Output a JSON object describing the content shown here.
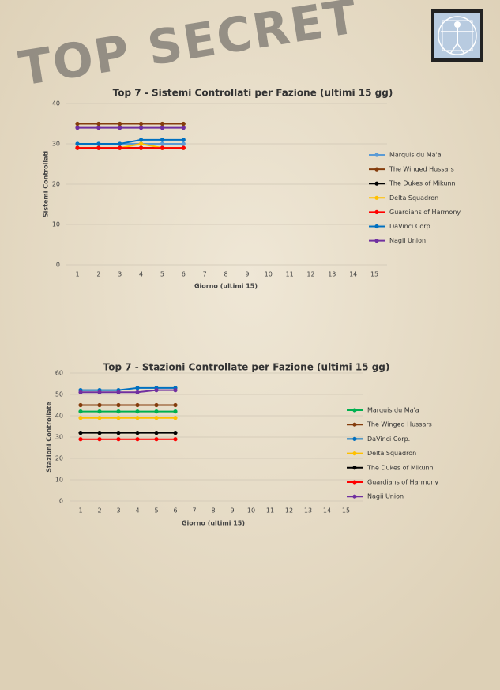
{
  "stamp": "TOP SECRET",
  "chart_data": [
    {
      "type": "line",
      "title": "Top 7 - Sistemi Controllati per Fazione (ultimi 15 gg)",
      "xlabel": "Giorno (ultimi 15)",
      "ylabel": "Sistemi Controllati",
      "categories": [
        1,
        2,
        3,
        4,
        5,
        6,
        7,
        8,
        9,
        10,
        11,
        12,
        13,
        14,
        15
      ],
      "ylim": [
        0,
        40
      ],
      "yticks": [
        0,
        10,
        20,
        30,
        40
      ],
      "grid": true,
      "legend": "right",
      "series": [
        {
          "name": "Marquis du Ma'a",
          "color": "#5b9bd5",
          "values": [
            30,
            30,
            30,
            30,
            30,
            30,
            null,
            null,
            null,
            null,
            null,
            null,
            null,
            null,
            null
          ]
        },
        {
          "name": "The Winged Hussars",
          "color": "#843c0c",
          "values": [
            35,
            35,
            35,
            35,
            35,
            35,
            null,
            null,
            null,
            null,
            null,
            null,
            null,
            null,
            null
          ]
        },
        {
          "name": "The Dukes of Mikunn",
          "color": "#000000",
          "values": [
            29,
            29,
            29,
            29,
            29,
            29,
            null,
            null,
            null,
            null,
            null,
            null,
            null,
            null,
            null
          ]
        },
        {
          "name": "Delta Squadron",
          "color": "#ffc000",
          "values": [
            29,
            29,
            29,
            30,
            29,
            29,
            null,
            null,
            null,
            null,
            null,
            null,
            null,
            null,
            null
          ]
        },
        {
          "name": "Guardians of Harmony",
          "color": "#ff0000",
          "values": [
            29,
            29,
            29,
            29,
            29,
            29,
            null,
            null,
            null,
            null,
            null,
            null,
            null,
            null,
            null
          ]
        },
        {
          "name": "DaVinci Corp.",
          "color": "#0070c0",
          "values": [
            30,
            30,
            30,
            31,
            31,
            31,
            null,
            null,
            null,
            null,
            null,
            null,
            null,
            null,
            null
          ]
        },
        {
          "name": "Nagii Union",
          "color": "#7030a0",
          "values": [
            34,
            34,
            34,
            34,
            34,
            34,
            null,
            null,
            null,
            null,
            null,
            null,
            null,
            null,
            null
          ]
        }
      ]
    },
    {
      "type": "line",
      "title": "Top 7 - Stazioni Controllate per Fazione (ultimi 15 gg)",
      "xlabel": "Giorno (ultimi 15)",
      "ylabel": "Stazioni Controllate",
      "categories": [
        1,
        2,
        3,
        4,
        5,
        6,
        7,
        8,
        9,
        10,
        11,
        12,
        13,
        14,
        15
      ],
      "ylim": [
        0,
        60
      ],
      "yticks": [
        0,
        10,
        20,
        30,
        40,
        50,
        60
      ],
      "grid": true,
      "legend": "right",
      "series": [
        {
          "name": "Marquis du Ma'a",
          "color": "#00b050",
          "values": [
            42,
            42,
            42,
            42,
            42,
            42,
            null,
            null,
            null,
            null,
            null,
            null,
            null,
            null,
            null
          ]
        },
        {
          "name": "The Winged Hussars",
          "color": "#843c0c",
          "values": [
            45,
            45,
            45,
            45,
            45,
            45,
            null,
            null,
            null,
            null,
            null,
            null,
            null,
            null,
            null
          ]
        },
        {
          "name": "DaVinci Corp.",
          "color": "#0070c0",
          "values": [
            52,
            52,
            52,
            53,
            53,
            53,
            null,
            null,
            null,
            null,
            null,
            null,
            null,
            null,
            null
          ]
        },
        {
          "name": "Delta Squadron",
          "color": "#ffc000",
          "values": [
            39,
            39,
            39,
            39,
            39,
            39,
            null,
            null,
            null,
            null,
            null,
            null,
            null,
            null,
            null
          ]
        },
        {
          "name": "The Dukes of Mikunn",
          "color": "#000000",
          "values": [
            32,
            32,
            32,
            32,
            32,
            32,
            null,
            null,
            null,
            null,
            null,
            null,
            null,
            null,
            null
          ]
        },
        {
          "name": "Guardians of Harmony",
          "color": "#ff0000",
          "values": [
            29,
            29,
            29,
            29,
            29,
            29,
            null,
            null,
            null,
            null,
            null,
            null,
            null,
            null,
            null
          ]
        },
        {
          "name": "Nagii Union",
          "color": "#7030a0",
          "values": [
            51,
            51,
            51,
            51,
            52,
            52,
            null,
            null,
            null,
            null,
            null,
            null,
            null,
            null,
            null
          ]
        }
      ]
    }
  ]
}
